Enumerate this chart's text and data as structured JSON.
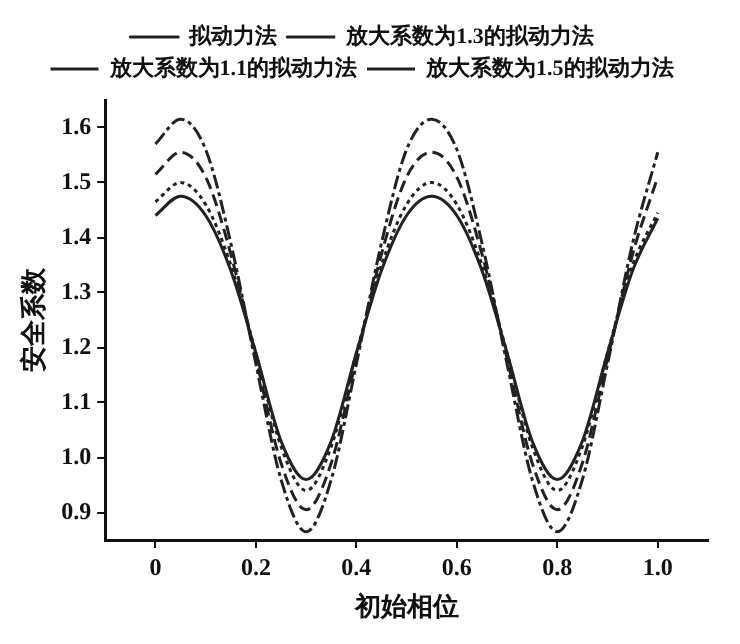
{
  "chart_data": {
    "type": "line",
    "xlabel": "初始相位",
    "ylabel": "安全系数",
    "x": [
      0,
      0.05,
      0.1,
      0.15,
      0.2,
      0.25,
      0.3,
      0.35,
      0.4,
      0.45,
      0.5,
      0.55,
      0.6,
      0.65,
      0.7,
      0.75,
      0.8,
      0.85,
      0.9,
      0.95,
      1.0
    ],
    "xlim": [
      -0.1,
      1.1
    ],
    "xticks": [
      0,
      0.2,
      0.4,
      0.6,
      0.8,
      {
        "value": 1,
        "label": "1.0"
      }
    ],
    "ylim": [
      0.85,
      1.65
    ],
    "yticks": [
      0.9,
      {
        "value": 1,
        "label": "1.0"
      },
      1.1,
      1.2,
      1.3,
      1.4,
      1.5,
      1.6
    ],
    "grid": false,
    "legend": "top",
    "marker": "none",
    "series": [
      {
        "name": "拟动力法",
        "color": "#222222",
        "line_style": "solid",
        "values": [
          1.44,
          1.475,
          1.44,
          1.34,
          1.19,
          1.03,
          0.96,
          1.03,
          1.19,
          1.34,
          1.44,
          1.475,
          1.44,
          1.34,
          1.19,
          1.03,
          0.96,
          1.03,
          1.19,
          1.34,
          1.435
        ]
      },
      {
        "name": "放大系数为1.3的拟动力法",
        "color": "#222222",
        "line_style": "dashed",
        "values": [
          1.515,
          1.555,
          1.51,
          1.37,
          1.18,
          0.99,
          0.905,
          0.99,
          1.18,
          1.37,
          1.51,
          1.555,
          1.51,
          1.37,
          1.18,
          0.99,
          0.905,
          0.99,
          1.18,
          1.37,
          1.51
        ]
      },
      {
        "name": "放大系数为1.1的拟动力法",
        "color": "#222222",
        "line_style": "dotted",
        "values": [
          1.465,
          1.5,
          1.46,
          1.35,
          1.19,
          1.02,
          0.94,
          1.02,
          1.19,
          1.35,
          1.46,
          1.5,
          1.46,
          1.35,
          1.19,
          1.02,
          0.94,
          1.02,
          1.19,
          1.35,
          1.445
        ]
      },
      {
        "name": "放大系数为1.5的拟动力法",
        "color": "#222222",
        "line_style": "dashdot",
        "values": [
          1.57,
          1.615,
          1.56,
          1.39,
          1.17,
          0.96,
          0.865,
          0.96,
          1.17,
          1.39,
          1.56,
          1.615,
          1.56,
          1.39,
          1.17,
          0.96,
          0.865,
          0.96,
          1.17,
          1.39,
          1.555
        ]
      }
    ]
  }
}
